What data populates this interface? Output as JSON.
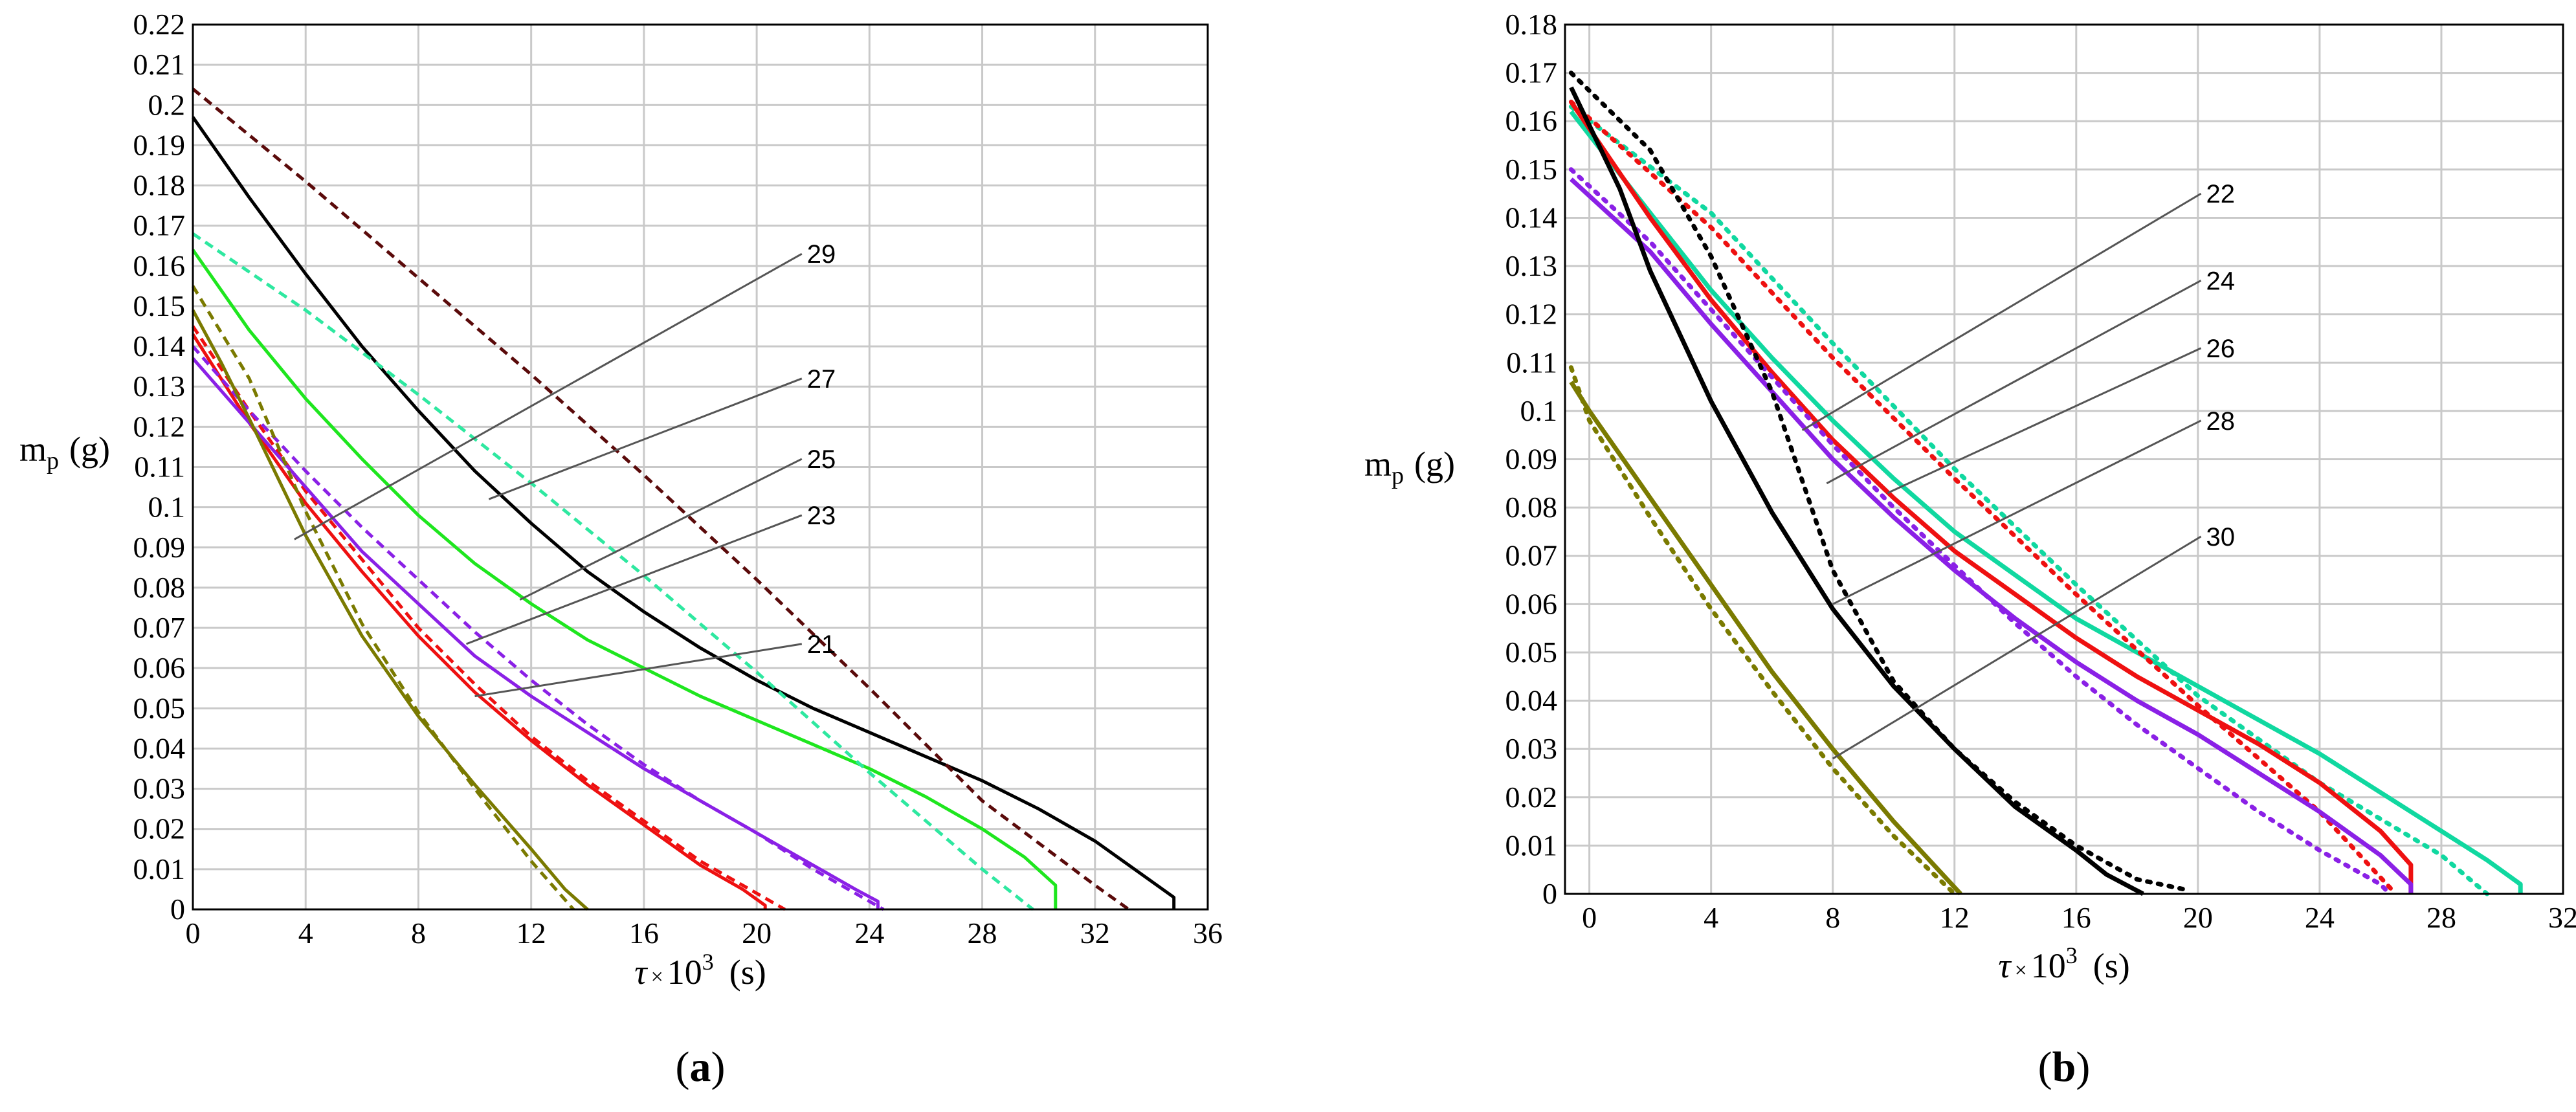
{
  "colors": {
    "black": "#000000",
    "maroon": "#5a0a0a",
    "green": "#1ee61e",
    "ltgreen": "#2ee8a0",
    "teal": "#10d8a0",
    "red": "#ee1010",
    "purple": "#8a20e6",
    "olive": "#7a7a00"
  },
  "chart_data": [
    {
      "type": "line",
      "panel_label": "a",
      "xlabel_symbol": "τ",
      "xlabel_mult": "×",
      "xlabel_base": "10",
      "xlabel_exp": "3",
      "xlabel_unit": "(s)",
      "ylabel_main": "m",
      "ylabel_sub": "p",
      "ylabel_unit": "(g)",
      "xlim": [
        0,
        36
      ],
      "ylim": [
        0,
        0.22
      ],
      "x_ticks": [
        0,
        4,
        8,
        12,
        16,
        20,
        24,
        28,
        32,
        36
      ],
      "y_ticks": [
        0,
        0.01,
        0.02,
        0.03,
        0.04,
        0.05,
        0.06,
        0.07,
        0.08,
        0.09,
        0.1,
        0.11,
        0.12,
        0.13,
        0.14,
        0.15,
        0.16,
        0.17,
        0.18,
        0.19,
        0.2,
        0.21,
        0.22
      ],
      "grid": true,
      "series": [
        {
          "color": "black",
          "dash": false,
          "x": [
            0,
            2,
            4,
            6,
            8,
            10,
            12,
            14,
            16,
            18,
            20,
            22,
            24,
            26,
            28,
            30,
            32,
            34,
            34.8,
            34.8
          ],
          "y": [
            0.197,
            0.177,
            0.158,
            0.14,
            0.124,
            0.109,
            0.096,
            0.084,
            0.074,
            0.065,
            0.057,
            0.05,
            0.044,
            0.038,
            0.032,
            0.025,
            0.017,
            0.007,
            0.003,
            0
          ]
        },
        {
          "color": "maroon",
          "dash": true,
          "x": [
            0,
            4,
            8,
            12,
            16,
            20,
            24,
            28,
            32,
            33.2
          ],
          "y": [
            0.204,
            0.181,
            0.157,
            0.133,
            0.108,
            0.082,
            0.055,
            0.027,
            0.006,
            0
          ]
        },
        {
          "color": "green",
          "dash": false,
          "x": [
            0,
            2,
            4,
            6,
            8,
            10,
            12,
            14,
            16,
            18,
            20,
            22,
            24,
            26,
            28,
            29.5,
            30.6,
            30.6
          ],
          "y": [
            0.164,
            0.144,
            0.127,
            0.112,
            0.098,
            0.086,
            0.076,
            0.067,
            0.06,
            0.053,
            0.047,
            0.041,
            0.035,
            0.028,
            0.02,
            0.013,
            0.006,
            0
          ]
        },
        {
          "color": "ltgreen",
          "dash": true,
          "x": [
            0,
            4,
            8,
            12,
            16,
            20,
            24,
            28,
            29.8
          ],
          "y": [
            0.168,
            0.149,
            0.128,
            0.106,
            0.083,
            0.059,
            0.034,
            0.01,
            0
          ]
        },
        {
          "color": "red",
          "dash": false,
          "x": [
            0,
            2,
            4,
            6,
            8,
            10,
            12,
            14,
            16,
            18,
            19.5,
            20.3,
            20.3
          ],
          "y": [
            0.143,
            0.121,
            0.101,
            0.084,
            0.068,
            0.054,
            0.042,
            0.031,
            0.021,
            0.011,
            0.005,
            0.001,
            0
          ]
        },
        {
          "color": "red",
          "dash": true,
          "x": [
            0,
            2,
            4,
            6,
            8,
            10,
            12,
            14,
            16,
            18,
            20,
            21
          ],
          "y": [
            0.145,
            0.124,
            0.104,
            0.087,
            0.07,
            0.056,
            0.043,
            0.032,
            0.022,
            0.012,
            0.004,
            0
          ]
        },
        {
          "color": "purple",
          "dash": false,
          "x": [
            0,
            2,
            4,
            6,
            8,
            10,
            12,
            14,
            16,
            18,
            20,
            22,
            23.5,
            24.3,
            24.3
          ],
          "y": [
            0.137,
            0.121,
            0.105,
            0.089,
            0.076,
            0.063,
            0.053,
            0.044,
            0.035,
            0.027,
            0.019,
            0.011,
            0.005,
            0.002,
            0
          ]
        },
        {
          "color": "purple",
          "dash": true,
          "x": [
            0,
            2,
            4,
            6,
            8,
            10,
            12,
            14,
            16,
            18,
            20,
            22,
            24,
            24.5
          ],
          "y": [
            0.14,
            0.124,
            0.109,
            0.095,
            0.082,
            0.069,
            0.057,
            0.046,
            0.036,
            0.027,
            0.019,
            0.01,
            0.002,
            0
          ]
        },
        {
          "color": "olive",
          "dash": false,
          "x": [
            0,
            1,
            2,
            4,
            6,
            8,
            10,
            12,
            13.2,
            14
          ],
          "y": [
            0.149,
            0.136,
            0.122,
            0.093,
            0.068,
            0.048,
            0.031,
            0.015,
            0.005,
            0
          ]
        },
        {
          "color": "olive",
          "dash": true,
          "x": [
            0,
            2,
            4,
            6,
            8,
            10,
            12,
            13.5
          ],
          "y": [
            0.155,
            0.132,
            0.099,
            0.071,
            0.049,
            0.03,
            0.012,
            0
          ]
        }
      ],
      "annotations": [
        {
          "label": "29",
          "x": 3.6,
          "y": 0.092,
          "tx": 21.6,
          "ty": 0.163
        },
        {
          "label": "27",
          "x": 10.5,
          "y": 0.102,
          "tx": 21.6,
          "ty": 0.132
        },
        {
          "label": "25",
          "x": 11.6,
          "y": 0.077,
          "tx": 21.6,
          "ty": 0.112
        },
        {
          "label": "23",
          "x": 9.7,
          "y": 0.066,
          "tx": 21.6,
          "ty": 0.098
        },
        {
          "label": "21",
          "x": 10.0,
          "y": 0.053,
          "tx": 21.6,
          "ty": 0.066
        }
      ]
    },
    {
      "type": "line",
      "panel_label": "b",
      "xlabel_symbol": "τ",
      "xlabel_mult": "×",
      "xlabel_base": "10",
      "xlabel_exp": "3",
      "xlabel_unit": "(s)",
      "ylabel_main": "m",
      "ylabel_sub": "p",
      "ylabel_unit": "(g)",
      "xlim": [
        -0.8,
        32
      ],
      "ylim": [
        0,
        0.18
      ],
      "x_ticks": [
        0,
        4,
        8,
        12,
        16,
        20,
        24,
        28,
        32
      ],
      "y_ticks": [
        0,
        0.01,
        0.02,
        0.03,
        0.04,
        0.05,
        0.06,
        0.07,
        0.08,
        0.09,
        0.1,
        0.11,
        0.12,
        0.13,
        0.14,
        0.15,
        0.16,
        0.17,
        0.18
      ],
      "grid": true,
      "series": [
        {
          "color": "teal",
          "dash": false,
          "x": [
            -0.6,
            2,
            4,
            6,
            8,
            10,
            12,
            14,
            16,
            18,
            20,
            22,
            24,
            26,
            28,
            29.5,
            30.6,
            30.6
          ],
          "y": [
            0.162,
            0.141,
            0.125,
            0.111,
            0.098,
            0.086,
            0.075,
            0.066,
            0.057,
            0.05,
            0.043,
            0.036,
            0.029,
            0.021,
            0.013,
            0.007,
            0.002,
            0
          ]
        },
        {
          "color": "teal",
          "dash": true,
          "x": [
            -0.6,
            4,
            8,
            12,
            16,
            20,
            24,
            28,
            29.5
          ],
          "y": [
            0.163,
            0.141,
            0.114,
            0.088,
            0.064,
            0.041,
            0.023,
            0.008,
            0
          ]
        },
        {
          "color": "red",
          "dash": false,
          "x": [
            -0.6,
            2,
            4,
            6,
            8,
            10,
            12,
            14,
            16,
            18,
            20,
            22,
            24,
            26,
            27,
            27,
            27
          ],
          "y": [
            0.164,
            0.14,
            0.123,
            0.108,
            0.094,
            0.082,
            0.071,
            0.062,
            0.053,
            0.045,
            0.038,
            0.031,
            0.023,
            0.013,
            0.006,
            0.003,
            0
          ]
        },
        {
          "color": "red",
          "dash": true,
          "x": [
            -0.6,
            4,
            8,
            12,
            16,
            20,
            24,
            26.5
          ],
          "y": [
            0.164,
            0.138,
            0.111,
            0.086,
            0.062,
            0.039,
            0.017,
            0
          ]
        },
        {
          "color": "purple",
          "dash": false,
          "x": [
            -0.6,
            2,
            4,
            6,
            8,
            10,
            12,
            14,
            16,
            18,
            20,
            22,
            24,
            26,
            27,
            27
          ],
          "y": [
            0.148,
            0.133,
            0.118,
            0.104,
            0.09,
            0.078,
            0.067,
            0.057,
            0.048,
            0.04,
            0.033,
            0.025,
            0.017,
            0.008,
            0.002,
            0
          ]
        },
        {
          "color": "purple",
          "dash": true,
          "x": [
            -0.6,
            2,
            4,
            6,
            8,
            10,
            12,
            14,
            16,
            18,
            20,
            22,
            24,
            26,
            26.3
          ],
          "y": [
            0.15,
            0.135,
            0.121,
            0.107,
            0.093,
            0.08,
            0.068,
            0.056,
            0.045,
            0.035,
            0.026,
            0.017,
            0.009,
            0.002,
            0
          ]
        },
        {
          "color": "black",
          "dash": false,
          "x": [
            -0.6,
            1,
            2,
            4,
            6,
            8,
            10,
            12,
            14,
            16,
            17,
            18.2
          ],
          "y": [
            0.167,
            0.146,
            0.129,
            0.102,
            0.079,
            0.059,
            0.043,
            0.03,
            0.018,
            0.009,
            0.004,
            0
          ]
        },
        {
          "color": "black",
          "dash": true,
          "x": [
            -0.6,
            2,
            4,
            6,
            8,
            10,
            12,
            14,
            16,
            18,
            19.5
          ],
          "y": [
            0.17,
            0.154,
            0.132,
            0.104,
            0.067,
            0.044,
            0.03,
            0.019,
            0.01,
            0.003,
            0.001
          ]
        },
        {
          "color": "olive",
          "dash": false,
          "x": [
            -0.6,
            0,
            2,
            4,
            6,
            8,
            10,
            12.2
          ],
          "y": [
            0.106,
            0.1,
            0.082,
            0.064,
            0.046,
            0.03,
            0.015,
            0
          ]
        },
        {
          "color": "olive",
          "dash": true,
          "x": [
            -0.6,
            0,
            2,
            4,
            6,
            8,
            10,
            12
          ],
          "y": [
            0.109,
            0.098,
            0.078,
            0.059,
            0.042,
            0.026,
            0.012,
            0
          ]
        }
      ],
      "annotations": [
        {
          "label": "22",
          "x": 7.0,
          "y": 0.096,
          "tx": 20.1,
          "ty": 0.145
        },
        {
          "label": "24",
          "x": 7.8,
          "y": 0.085,
          "tx": 20.1,
          "ty": 0.127
        },
        {
          "label": "26",
          "x": 9.8,
          "y": 0.083,
          "tx": 20.1,
          "ty": 0.113
        },
        {
          "label": "28",
          "x": 8.0,
          "y": 0.06,
          "tx": 20.1,
          "ty": 0.098
        },
        {
          "label": "30",
          "x": 8.0,
          "y": 0.028,
          "tx": 20.1,
          "ty": 0.074
        }
      ]
    }
  ]
}
